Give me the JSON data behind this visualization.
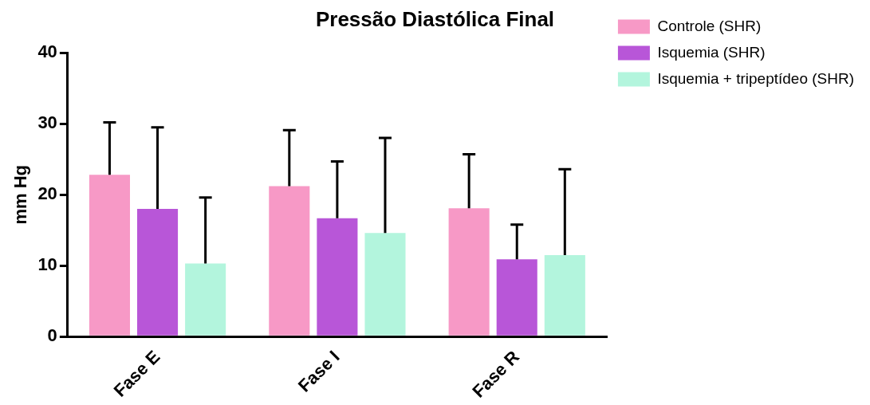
{
  "chart_data": {
    "type": "bar",
    "title": "Pressão Diastólica Final",
    "ylabel": "mm Hg",
    "categories": [
      "Fase E",
      "Fase I",
      "Fase R"
    ],
    "series": [
      {
        "name": "Controle (SHR)",
        "color": "#f799c6",
        "values": [
          22.8,
          21.2,
          18.1
        ],
        "errors": [
          [
            22.8,
            30.2
          ],
          [
            21.2,
            29.1
          ],
          [
            18.1,
            25.7
          ]
        ]
      },
      {
        "name": "Isquemia (SHR)",
        "color": "#b856d8",
        "values": [
          18.0,
          16.7,
          10.9
        ],
        "errors": [
          [
            18.0,
            29.5
          ],
          [
            16.7,
            24.7
          ],
          [
            10.9,
            15.8
          ]
        ]
      },
      {
        "name": "Isquemia + tripeptídeo (SHR)",
        "color": "#b3f5dd",
        "values": [
          10.3,
          14.6,
          11.5
        ],
        "errors": [
          [
            10.3,
            19.6
          ],
          [
            14.6,
            28.0
          ],
          [
            11.5,
            23.6
          ]
        ]
      }
    ],
    "ylim": [
      0,
      40
    ],
    "yticks": [
      0,
      10,
      20,
      30,
      40
    ],
    "grid": false,
    "legend": "right"
  }
}
